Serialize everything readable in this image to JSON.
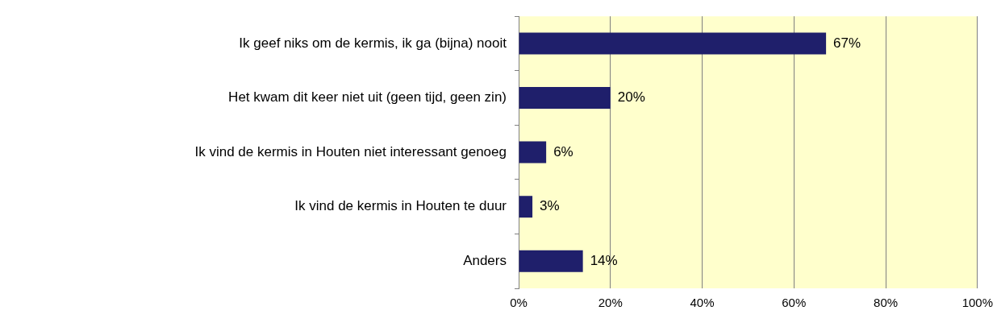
{
  "chart_data": {
    "type": "bar",
    "orientation": "horizontal",
    "categories": [
      "Ik geef niks om de kermis, ik ga (bijna) nooit",
      "Het kwam dit keer niet uit (geen tijd, geen zin)",
      "Ik vind de kermis in Houten niet interessant genoeg",
      "Ik vind de kermis in Houten te duur",
      "Anders"
    ],
    "values": [
      67,
      20,
      6,
      3,
      14
    ],
    "value_labels": [
      "67%",
      "20%",
      "6%",
      "3%",
      "14%"
    ],
    "color": "#1f1f6b",
    "xlim": [
      0,
      100
    ],
    "xticks": [
      {
        "value": 0,
        "label": "0%"
      },
      {
        "value": 20,
        "label": "20%"
      },
      {
        "value": 40,
        "label": "40%"
      },
      {
        "value": 60,
        "label": "60%"
      },
      {
        "value": 80,
        "label": "80%"
      },
      {
        "value": 100,
        "label": "100%"
      }
    ],
    "grid": "x",
    "legend": false
  }
}
